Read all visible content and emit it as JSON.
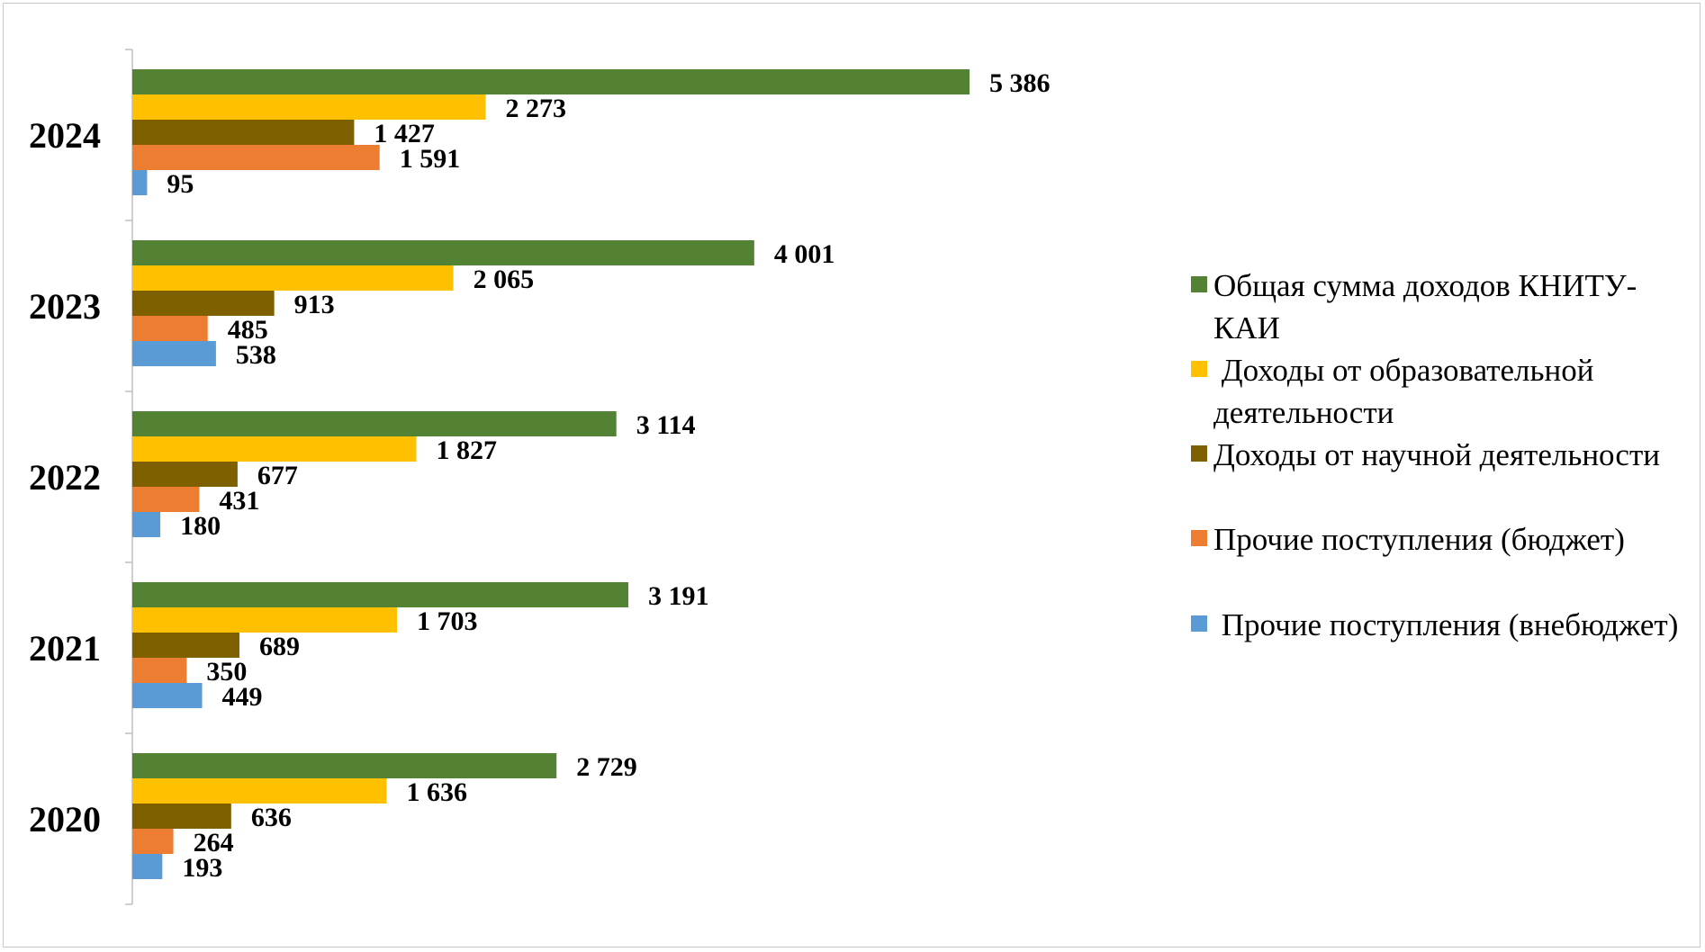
{
  "chart_data": {
    "type": "bar",
    "orientation": "horizontal",
    "categories": [
      "2024",
      "2023",
      "2022",
      "2021",
      "2020"
    ],
    "series": [
      {
        "name": "Общая сумма доходов КНИТУ-КАИ",
        "color": "#548235",
        "values": [
          5386,
          4001,
          3114,
          3191,
          2729
        ],
        "labels": [
          "5 386",
          "4 001",
          "3 114",
          "3 191",
          "2 729"
        ]
      },
      {
        "name": "Доходы от образовательной деятельности",
        "color": "#FFC000",
        "values": [
          2273,
          2065,
          1827,
          1703,
          1636
        ],
        "labels": [
          "2 273",
          "2 065",
          "1 827",
          "1 703",
          "1 636"
        ]
      },
      {
        "name": "Доходы от научной деятельности",
        "color": "#7F6000",
        "values": [
          1427,
          913,
          677,
          689,
          636
        ],
        "labels": [
          "1 427",
          "913",
          "677",
          "689",
          "636"
        ]
      },
      {
        "name": "Прочие поступления (бюджет)",
        "color": "#ED7D31",
        "values": [
          1591,
          485,
          431,
          350,
          264
        ],
        "labels": [
          "1 591",
          "485",
          "431",
          "350",
          "264"
        ]
      },
      {
        "name": "Прочие поступления (внебюджет)",
        "color": "#5B9BD5",
        "values": [
          95,
          538,
          180,
          449,
          193
        ],
        "labels": [
          "95",
          "538",
          "180",
          "449",
          "193"
        ]
      }
    ],
    "xlim": [
      0,
      5386
    ],
    "grid": false,
    "legend_position": "right",
    "title": "",
    "xlabel": "",
    "ylabel": ""
  },
  "legend": {
    "items": [
      {
        "label": "Общая сумма доходов КНИТУ-КАИ",
        "color": "#548235"
      },
      {
        "label": " Доходы от образовательной деятельности",
        "color": "#FFC000"
      },
      {
        "label": "Доходы от научной деятельности",
        "color": "#7F6000"
      },
      {
        "label": "Прочие поступления (бюджет)",
        "color": "#ED7D31"
      },
      {
        "label": " Прочие поступления (внебюджет)",
        "color": "#5B9BD5"
      }
    ]
  }
}
